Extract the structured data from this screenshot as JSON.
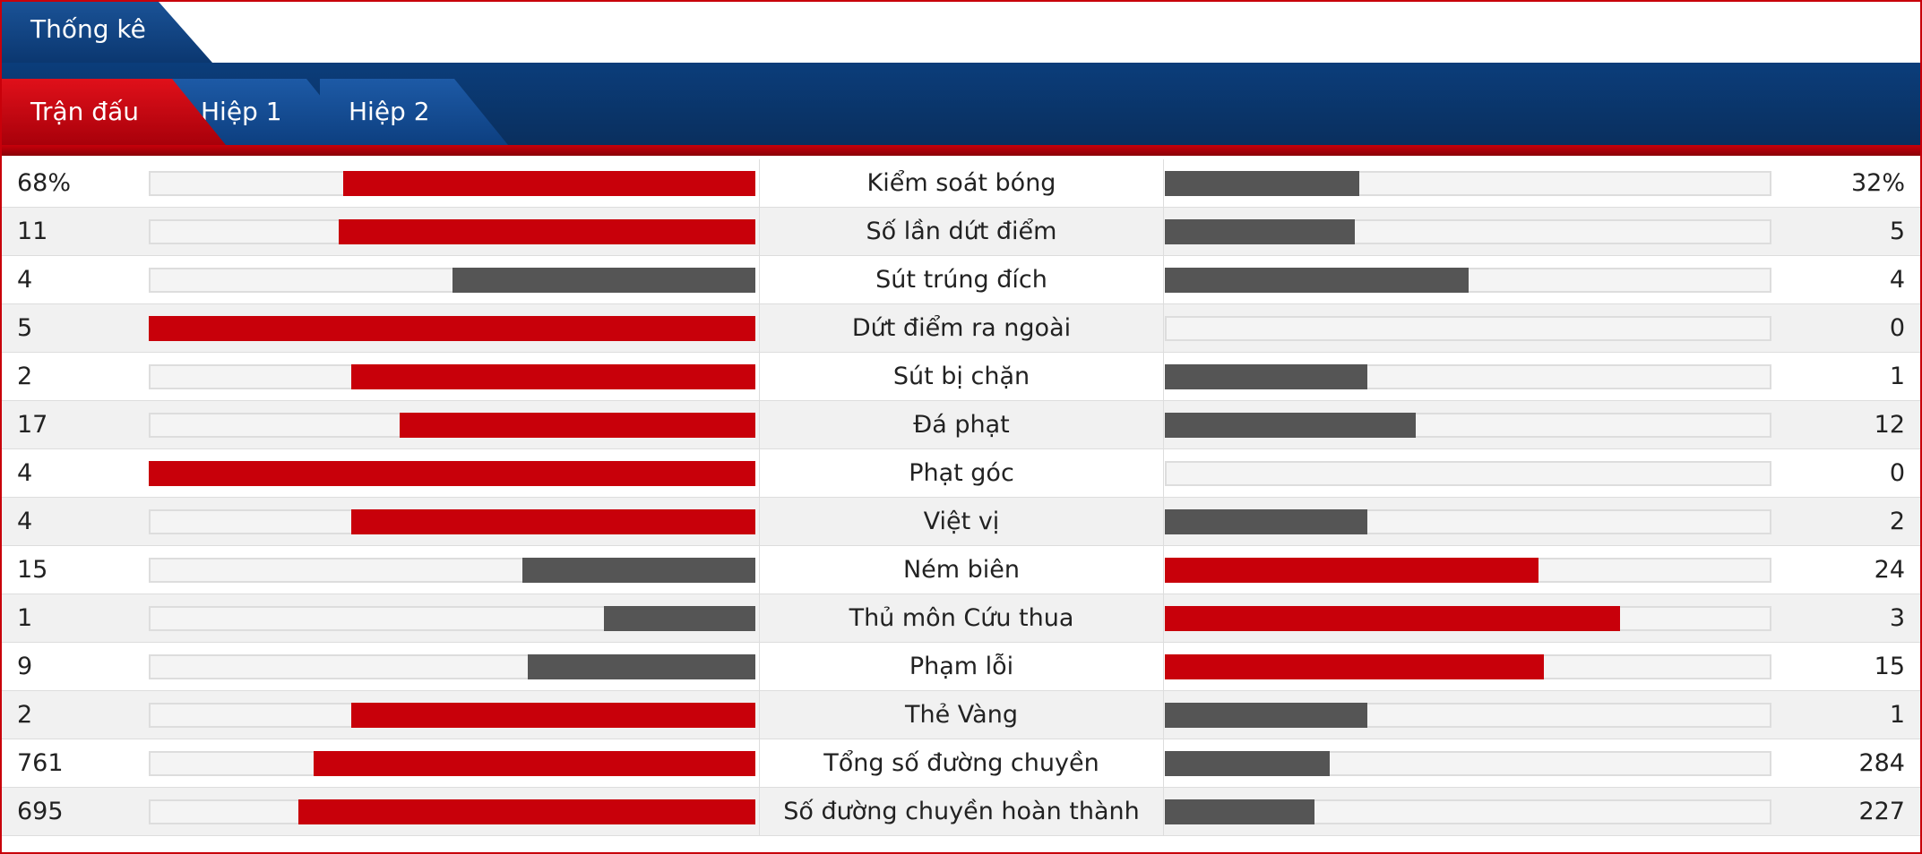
{
  "header": {
    "title": "Thống kê"
  },
  "tabs": [
    {
      "label": "Trận đấu",
      "active": true
    },
    {
      "label": "Hiệp 1"
    },
    {
      "label": "Hiệp 2"
    }
  ],
  "colors": {
    "leader": "#c8000a",
    "other": "#555555"
  },
  "rows": [
    {
      "label": "Kiểm soát bóng",
      "home": {
        "value": 68,
        "label": "68%"
      },
      "away": {
        "value": 32,
        "label": "32%"
      }
    },
    {
      "label": "Số lần dứt điểm",
      "home": 11,
      "away": 5
    },
    {
      "label": "Sút trúng đích",
      "home": 4,
      "away": 4
    },
    {
      "label": "Dứt điểm ra ngoài",
      "home": 5,
      "away": 0
    },
    {
      "label": "Sút bị chặn",
      "home": 2,
      "away": 1
    },
    {
      "label": "Đá phạt",
      "home": 17,
      "away": 12
    },
    {
      "label": "Phạt góc",
      "home": 4,
      "away": 0
    },
    {
      "label": "Việt vị",
      "home": 4,
      "away": 2
    },
    {
      "label": "Ném biên",
      "home": 15,
      "away": 24
    },
    {
      "label": "Thủ môn Cứu thua",
      "home": 1,
      "away": 3
    },
    {
      "label": "Phạm lỗi",
      "home": 9,
      "away": 15
    },
    {
      "label": "Thẻ Vàng",
      "home": 2,
      "away": 1
    },
    {
      "label": "Tổng số đường chuyền",
      "home": 761,
      "away": 284
    },
    {
      "label": "Số đường chuyền hoàn thành",
      "home": 695,
      "away": 227
    }
  ]
}
